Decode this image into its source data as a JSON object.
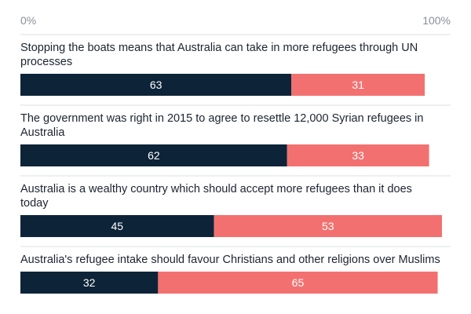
{
  "chart_data": {
    "type": "bar",
    "stacked": true,
    "orientation": "horizontal",
    "x_ticks": [
      "0%",
      "100%"
    ],
    "xlim": [
      0,
      100
    ],
    "categories": [
      [
        "Stopping the boats means that Australia can take in more refugees through UN",
        "processes"
      ],
      [
        "The government was right in 2015 to agree to resettle 12,000 Syrian refugees in",
        "Australia"
      ],
      [
        "Australia is a wealthy country which should accept more refugees than it does",
        "today"
      ],
      [
        "Australia's refugee intake should favour Christians and other religions over Muslims"
      ]
    ],
    "series": [
      {
        "values": [
          63,
          62,
          45,
          32
        ],
        "color": "#0d2438"
      },
      {
        "values": [
          31,
          33,
          53,
          65
        ],
        "color": "#f27170"
      }
    ],
    "grid": true,
    "legend": "none"
  }
}
